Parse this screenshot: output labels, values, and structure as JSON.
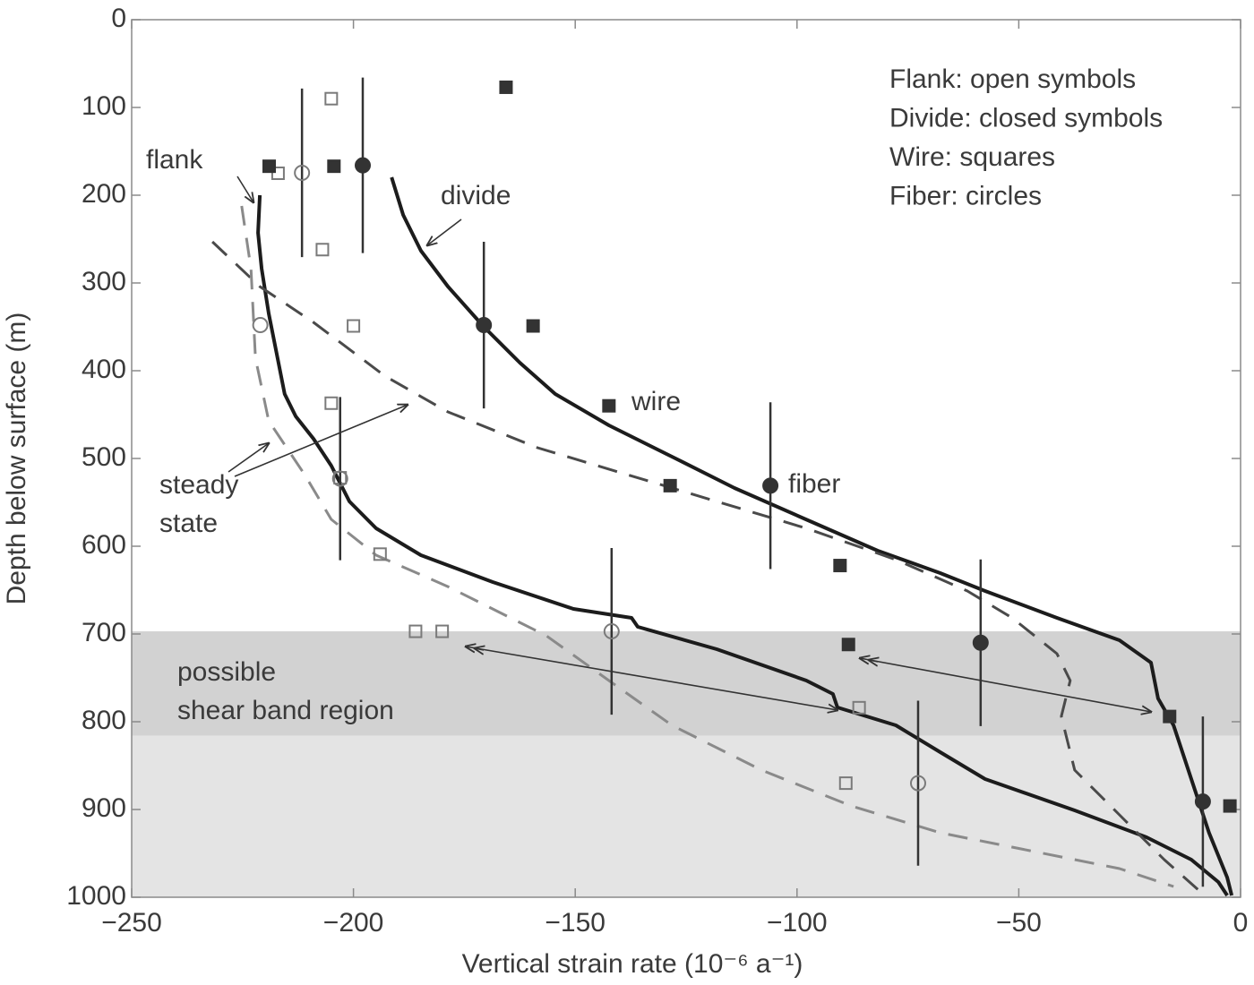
{
  "chart_data": {
    "type": "line",
    "xlabel": "Vertical strain rate (10⁻⁶ a⁻¹)",
    "ylabel": "Depth below surface (m)",
    "xlim": [
      -250,
      0
    ],
    "ylim": [
      0,
      1000
    ],
    "y_inverted": true,
    "xticks": [
      {
        "value": -250,
        "label": "−250"
      },
      {
        "value": -200,
        "label": "−200"
      },
      {
        "value": -150,
        "label": "−150"
      },
      {
        "value": -100,
        "label": "−100"
      },
      {
        "value": -50,
        "label": "−50"
      },
      0
    ],
    "yticks": [
      0,
      100,
      200,
      300,
      400,
      500,
      600,
      700,
      800,
      900,
      1000
    ],
    "shaded_regions": [
      {
        "from": 697,
        "to": 816,
        "color": "#d2d2d2"
      },
      {
        "from": 816,
        "to": 1000,
        "color": "#e4e4e4"
      }
    ],
    "legend_note": [
      "Flank: open symbols",
      "Divide: closed symbols",
      "Wire: squares",
      "Fiber: circles"
    ],
    "annotations": [
      {
        "lines": [
          "wire"
        ]
      },
      {
        "lines": [
          "fiber"
        ]
      },
      {
        "lines": [
          "steady",
          "state"
        ]
      },
      {
        "lines": [
          "possible",
          "shear band region"
        ]
      }
    ],
    "series": [
      {
        "name": "divide",
        "style": "line",
        "dash": false,
        "color": "#1c1c1c",
        "x": [
          -191.4,
          -188.8,
          -184.8,
          -178.7,
          -170.6,
          -162.5,
          -154.5,
          -142.4,
          -128.2,
          -114.1,
          -98,
          -81.8,
          -67.7,
          -57.6,
          -41.4,
          -27.3,
          -20.2,
          -18.6,
          -15.1,
          -11.1,
          -7.1,
          -3,
          -2
        ],
        "y": [
          179.6,
          222.4,
          263.3,
          304.1,
          350,
          390.8,
          426.5,
          462.2,
          498,
          533.7,
          569.4,
          605.1,
          630.6,
          651,
          681.6,
          707.1,
          732.7,
          773.5,
          804.1,
          865.3,
          926.5,
          977.6,
          998
        ]
      },
      {
        "name": "flank",
        "style": "line",
        "dash": false,
        "color": "#1c1c1c",
        "x": [
          -221.1,
          -221.5,
          -220.7,
          -219.1,
          -217.1,
          -215.5,
          -213,
          -209,
          -205,
          -200.9,
          -194.9,
          -184.8,
          -168.6,
          -150.4,
          -137.3,
          -135.9,
          -132.3,
          -118.1,
          -97.9,
          -91.9,
          -90.9,
          -77.7,
          -67.7,
          -57.6,
          -37.4,
          -21.2,
          -11.1,
          -5,
          -3
        ],
        "y": [
          200,
          242.9,
          283.7,
          334.7,
          385.7,
          426.5,
          452,
          477.6,
          508.2,
          549,
          579.6,
          610.2,
          640.8,
          671.4,
          681.6,
          691.8,
          697,
          717.3,
          753.1,
          768.4,
          783.7,
          804.1,
          834.7,
          865.3,
          901,
          931.6,
          957.1,
          982.7,
          998
        ]
      },
      {
        "style": "line",
        "dash": true,
        "color": "#4a4a4a",
        "x": [
          -231.8,
          -221.1,
          -209,
          -192.9,
          -178.7,
          -158.5,
          -138.3,
          -118.1,
          -97.9,
          -77.7,
          -61.6,
          -51.5,
          -41.4,
          -38.4,
          -40.4,
          -37.4,
          -27.3,
          -17.2,
          -8.1
        ],
        "y": [
          253.1,
          304.1,
          344.9,
          406.1,
          446.9,
          487.8,
          518.4,
          549,
          579.6,
          615.3,
          651,
          681.6,
          722.4,
          753.1,
          793.9,
          855.1,
          906.1,
          957.1,
          998
        ]
      },
      {
        "style": "line",
        "dash": true,
        "color": "#8a8a8a",
        "x": [
          -225.2,
          -223.1,
          -222.1,
          -219.1,
          -211,
          -205,
          -194.9,
          -178.7,
          -156.5,
          -142.4,
          -128.2,
          -108,
          -87.8,
          -67.7,
          -47.5,
          -27.3,
          -15.1
        ],
        "y": [
          212.2,
          283.7,
          385.7,
          457.1,
          518.4,
          569.4,
          610.2,
          646,
          702,
          753.1,
          804.1,
          855.1,
          895.9,
          926.5,
          946.9,
          967.3,
          987.8
        ]
      },
      {
        "style": "marker",
        "marker": "square",
        "filled": false,
        "color": "#7a7a7a",
        "x": [
          -205,
          -217,
          -207,
          -200,
          -205,
          -203,
          -194,
          -186,
          -180,
          -86,
          -89
        ],
        "y": [
          90,
          175,
          262,
          349,
          437,
          522,
          609,
          697,
          697,
          784,
          870
        ]
      },
      {
        "style": "marker",
        "marker": "circle",
        "filled": false,
        "color": "#7a7a7a",
        "x": [
          -211.6,
          -221,
          -203,
          -141.8,
          -72.7
        ],
        "y": [
          174.5,
          348,
          523,
          697,
          870
        ],
        "yerr": [
          96,
          null,
          93,
          95,
          94
        ]
      },
      {
        "style": "marker",
        "marker": "square",
        "filled": true,
        "color": "#333333",
        "x": [
          -219,
          -204.4,
          -165.6,
          -159.5,
          -142.4,
          -128.6,
          -90.3,
          -88.4,
          -16,
          -2.4
        ],
        "y": [
          167,
          167,
          77,
          349,
          440,
          531,
          622,
          712,
          794,
          896
        ]
      },
      {
        "style": "marker",
        "marker": "circle",
        "filled": true,
        "color": "#333333",
        "x": [
          -197.9,
          -170.6,
          -106,
          -58.6,
          -8.5
        ],
        "y": [
          166,
          348,
          531,
          710,
          891
        ],
        "yerr": [
          100,
          95,
          95,
          95,
          97
        ]
      }
    ]
  }
}
